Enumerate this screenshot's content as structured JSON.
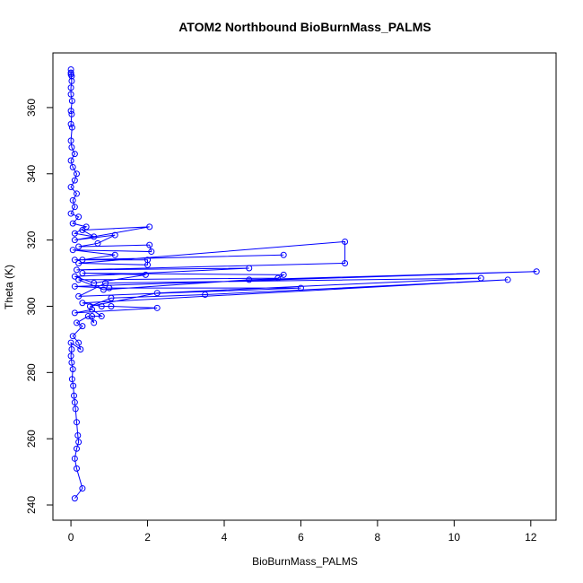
{
  "chart_data": {
    "type": "line",
    "title": "ATOM2 Northbound BioBurnMass_PALMS",
    "x_label": "BioBurnMass_PALMS",
    "y_label": "Theta (K)",
    "markers": true,
    "color": "#0000ff",
    "x": [
      0.1,
      0.3,
      0.15,
      0.1,
      0.15,
      0.2,
      0.18,
      0.15,
      0.12,
      0.1,
      0.08,
      0.06,
      0.03,
      0.05,
      0.02,
      0.0,
      0.02,
      0.0,
      0.25,
      0.2,
      0.05,
      0.3,
      0.15,
      0.45,
      0.6,
      0.55,
      0.8,
      0.55,
      0.1,
      2.25,
      1.05,
      0.8,
      0.3,
      11.4,
      3.5,
      1.05,
      0.5,
      2.25,
      10.7,
      0.9,
      0.2,
      6.0,
      1.0,
      0.1,
      12.15,
      4.65,
      0.85,
      0.2,
      5.4,
      5.55,
      0.3,
      1.95,
      0.6,
      0.1,
      4.65,
      0.15,
      7.15,
      7.15,
      0.2,
      2.0,
      2.0,
      0.1,
      5.55,
      0.3,
      1.15,
      0.05,
      2.1,
      2.05,
      0.2,
      0.7,
      1.15,
      0.1,
      2.05,
      0.3,
      0.6,
      0.1,
      0.4,
      0.05,
      0.2,
      0.0,
      0.1,
      0.05,
      0.15,
      0.0,
      0.1,
      0.15,
      0.05,
      0.0,
      0.1,
      0.02,
      0.0,
      0.03,
      0.0,
      0.02,
      0.0,
      0.03,
      0.0,
      0.0,
      0.02,
      0.0,
      0.0,
      0.0,
      0.02
    ],
    "y": [
      242,
      245,
      251,
      254,
      257,
      259,
      261,
      265,
      269,
      271,
      273,
      276,
      278,
      281,
      283,
      285,
      287,
      289,
      287,
      289,
      291,
      294,
      295,
      297,
      295,
      297,
      297,
      299,
      298,
      299.5,
      300,
      300,
      301,
      308,
      303.5,
      302.5,
      300,
      304,
      308.5,
      307,
      303,
      305.5,
      305.5,
      306,
      310.5,
      308,
      305,
      308,
      308.5,
      309.5,
      310,
      309.5,
      307,
      309,
      311.5,
      311,
      313,
      319.5,
      313,
      312.5,
      314,
      314,
      315.5,
      314,
      315.5,
      317,
      316.5,
      318.5,
      318,
      319,
      321.5,
      320,
      324,
      323,
      321,
      322,
      324,
      325,
      327,
      328,
      330,
      332,
      334,
      336,
      338,
      340,
      342,
      344,
      346,
      348,
      350,
      354,
      355,
      358,
      359,
      362,
      364,
      366,
      368,
      370,
      371.5,
      370.5,
      369.5
    ],
    "xlim": [
      -0.47,
      12.66
    ],
    "ylim": [
      235.4,
      376.5
    ],
    "xticks": [
      0,
      2,
      4,
      6,
      8,
      10,
      12
    ],
    "yticks": [
      240,
      260,
      280,
      300,
      320,
      340,
      360
    ]
  }
}
